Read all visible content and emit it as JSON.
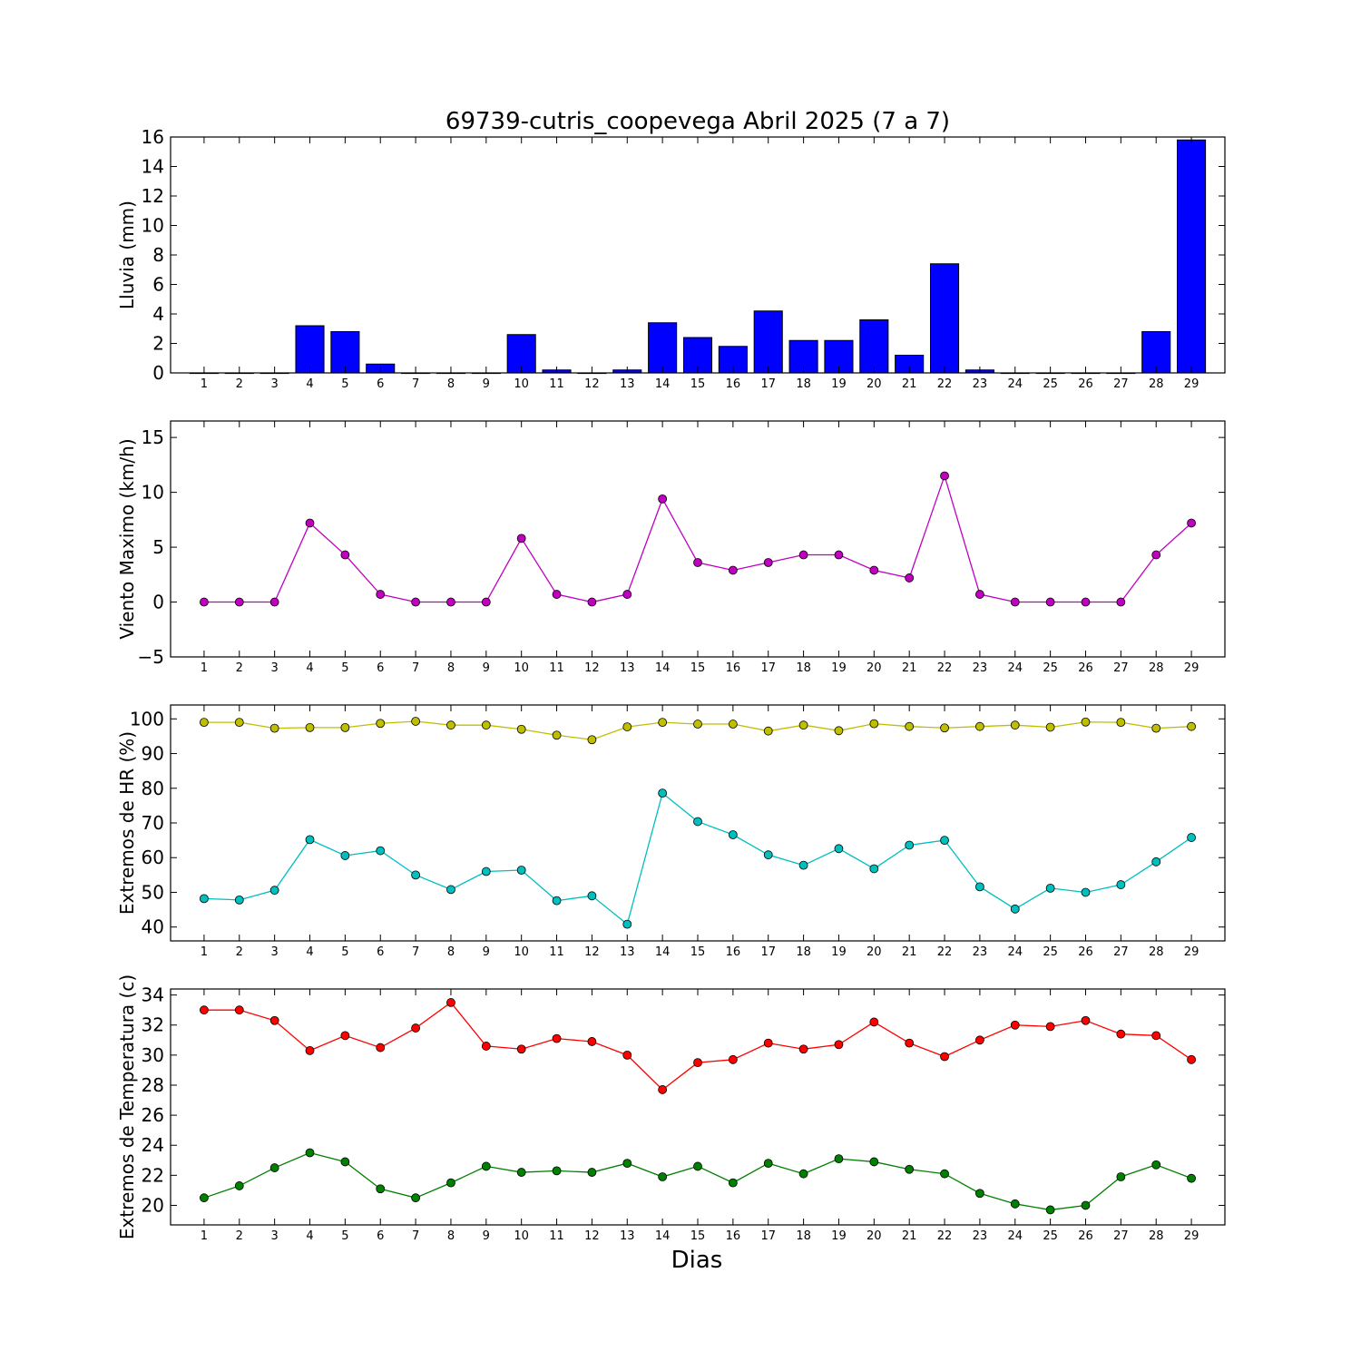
{
  "title": "69739-cutris_coopevega Abril 2025  (7 a 7)",
  "xlabel": "Dias",
  "chart_data": [
    {
      "type": "bar",
      "ylabel": "Lluvia (mm)",
      "categories": [
        "1",
        "2",
        "3",
        "4",
        "5",
        "6",
        "7",
        "8",
        "9",
        "10",
        "11",
        "12",
        "13",
        "14",
        "15",
        "16",
        "17",
        "18",
        "19",
        "20",
        "21",
        "22",
        "23",
        "24",
        "25",
        "26",
        "27",
        "28",
        "29"
      ],
      "values": [
        0,
        0,
        0,
        3.2,
        2.8,
        0.6,
        0,
        0,
        0,
        2.6,
        0.2,
        0,
        0.2,
        3.4,
        2.4,
        1.8,
        4.2,
        2.2,
        2.2,
        3.6,
        1.2,
        7.4,
        0.2,
        0,
        0,
        0,
        0,
        2.8,
        15.8
      ],
      "ylim": [
        0,
        16
      ],
      "yticks": [
        0,
        2,
        4,
        6,
        8,
        10,
        12,
        14,
        16
      ],
      "ytick_labels": [
        "0",
        "2",
        "4",
        "6",
        "8",
        "10",
        "12",
        "14",
        "16"
      ],
      "color": "#0000ff"
    },
    {
      "type": "line",
      "ylabel": "Viento Maximo (km/h)",
      "categories": [
        "1",
        "2",
        "3",
        "4",
        "5",
        "6",
        "7",
        "8",
        "9",
        "10",
        "11",
        "12",
        "13",
        "14",
        "15",
        "16",
        "17",
        "18",
        "19",
        "20",
        "21",
        "22",
        "23",
        "24",
        "25",
        "26",
        "27",
        "28",
        "29"
      ],
      "series": [
        {
          "color": "#bf00bf",
          "values": [
            0,
            0,
            0,
            7.2,
            4.3,
            0.7,
            0,
            0,
            0,
            5.8,
            0.7,
            0,
            0.7,
            9.4,
            3.6,
            2.9,
            3.6,
            4.3,
            4.3,
            2.9,
            2.2,
            11.5,
            0.7,
            0,
            0,
            0,
            0,
            4.3,
            7.2
          ]
        }
      ],
      "ylim": [
        -5,
        16.5
      ],
      "yticks": [
        -5,
        0,
        5,
        10,
        15
      ],
      "ytick_labels": [
        "−5",
        "0",
        "5",
        "10",
        "15"
      ]
    },
    {
      "type": "line",
      "ylabel": "Extremos de HR (%)",
      "categories": [
        "1",
        "2",
        "3",
        "4",
        "5",
        "6",
        "7",
        "8",
        "9",
        "10",
        "11",
        "12",
        "13",
        "14",
        "15",
        "16",
        "17",
        "18",
        "19",
        "20",
        "21",
        "22",
        "23",
        "24",
        "25",
        "26",
        "27",
        "28",
        "29"
      ],
      "series": [
        {
          "color": "#bfbf00",
          "values": [
            99,
            99,
            97.3,
            97.5,
            97.5,
            98.7,
            99.3,
            98.2,
            98.2,
            97,
            95.3,
            94,
            97.7,
            99,
            98.5,
            98.5,
            96.5,
            98.2,
            96.6,
            98.6,
            97.8,
            97.4,
            97.8,
            98.2,
            97.6,
            99.1,
            99,
            97.3,
            97.8
          ]
        },
        {
          "color": "#00bfbf",
          "values": [
            48.2,
            47.8,
            50.6,
            65.2,
            60.6,
            62,
            55,
            50.8,
            56,
            56.4,
            47.6,
            49,
            40.8,
            78.6,
            70.4,
            66.6,
            60.8,
            57.8,
            62.6,
            56.8,
            63.6,
            65,
            51.6,
            45.2,
            51.2,
            50,
            52.2,
            58.8,
            65.8
          ]
        }
      ],
      "ylim": [
        36,
        104
      ],
      "yticks": [
        40,
        50,
        60,
        70,
        80,
        90,
        100
      ],
      "ytick_labels": [
        "40",
        "50",
        "60",
        "70",
        "80",
        "90",
        "100"
      ]
    },
    {
      "type": "line",
      "ylabel": "Extremos de Temperatura (c)",
      "categories": [
        "1",
        "2",
        "3",
        "4",
        "5",
        "6",
        "7",
        "8",
        "9",
        "10",
        "11",
        "12",
        "13",
        "14",
        "15",
        "16",
        "17",
        "18",
        "19",
        "20",
        "21",
        "22",
        "23",
        "24",
        "25",
        "26",
        "27",
        "28",
        "29"
      ],
      "series": [
        {
          "color": "#ff0000",
          "values": [
            33,
            33,
            32.3,
            30.3,
            31.3,
            30.5,
            31.8,
            33.5,
            30.6,
            30.4,
            31.1,
            30.9,
            30,
            27.7,
            29.5,
            29.7,
            30.8,
            30.4,
            30.7,
            32.2,
            30.8,
            29.9,
            31,
            32,
            31.9,
            32.3,
            31.4,
            31.3,
            29.7
          ]
        },
        {
          "color": "#008000",
          "values": [
            20.5,
            21.3,
            22.5,
            23.5,
            22.9,
            21.1,
            20.5,
            21.5,
            22.6,
            22.2,
            22.3,
            22.2,
            22.8,
            21.9,
            22.6,
            21.5,
            22.8,
            22.1,
            23.1,
            22.9,
            22.4,
            22.1,
            20.8,
            20.1,
            19.7,
            20,
            21.9,
            22.7,
            21.8
          ]
        }
      ],
      "ylim": [
        18.7,
        34.4
      ],
      "yticks": [
        20,
        22,
        24,
        26,
        28,
        30,
        32,
        34
      ],
      "ytick_labels": [
        "20",
        "22",
        "24",
        "26",
        "28",
        "30",
        "32",
        "34"
      ]
    }
  ]
}
